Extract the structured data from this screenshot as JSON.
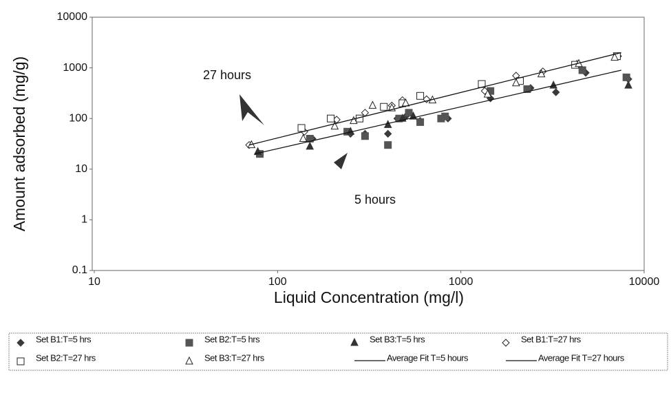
{
  "chart_data": {
    "type": "scatter",
    "x_label": "Liquid Concentration (mg/l)",
    "y_label": "Amount adsorbed (mg/g)",
    "annotations": [
      "27 hours",
      "5 hours"
    ],
    "x_log": true,
    "y_log": true,
    "xlim": [
      10,
      10000
    ],
    "xticks": [
      10,
      100,
      1000,
      10000
    ],
    "ylim": [
      0.1,
      10000
    ],
    "yticks": [
      0.1,
      1,
      10,
      100,
      1000,
      10000
    ],
    "series": [
      {
        "name": "Set B1:T=5 hrs",
        "marker": "diamond",
        "filled": true,
        "color": "#3a3a3a",
        "x": [
          80,
          155,
          250,
          300,
          400,
          450,
          500,
          600,
          850,
          1450,
          2400,
          3300,
          4800,
          8200
        ],
        "values": [
          20,
          40,
          50,
          50,
          50,
          100,
          110,
          90,
          100,
          250,
          400,
          330,
          800,
          600
        ]
      },
      {
        "name": "Set B2:T=5 hrs",
        "marker": "square",
        "filled": true,
        "color": "#555555",
        "x": [
          80,
          150,
          240,
          300,
          400,
          460,
          520,
          600,
          780,
          820,
          1450,
          2300,
          4600,
          8000
        ],
        "values": [
          20,
          40,
          55,
          45,
          30,
          100,
          130,
          85,
          100,
          110,
          350,
          380,
          900,
          650
        ]
      },
      {
        "name": "Set B3:T=5 hrs",
        "marker": "triangle",
        "filled": true,
        "color": "#333333",
        "x": [
          78,
          150,
          250,
          400,
          480,
          550,
          3200,
          8200
        ],
        "values": [
          22,
          28,
          55,
          75,
          100,
          110,
          450,
          450
        ]
      },
      {
        "name": "Set B1:T=27 hrs",
        "marker": "diamond",
        "filled": false,
        "color": "#222222",
        "x": [
          70,
          140,
          210,
          300,
          420,
          480,
          650,
          1350,
          2000,
          2800,
          4300,
          7200
        ],
        "values": [
          30,
          55,
          95,
          130,
          180,
          230,
          240,
          350,
          700,
          850,
          1200,
          1700
        ]
      },
      {
        "name": "Set B2:T=27 hrs",
        "marker": "square",
        "filled": false,
        "color": "#222222",
        "x": [
          135,
          195,
          280,
          380,
          480,
          600,
          1300,
          2100,
          4200,
          7100
        ],
        "values": [
          65,
          100,
          100,
          170,
          200,
          280,
          480,
          550,
          1150,
          1700
        ]
      },
      {
        "name": "Set B3:T=27 hrs",
        "marker": "triangle",
        "filled": false,
        "color": "#222222",
        "x": [
          72,
          138,
          205,
          260,
          330,
          420,
          500,
          700,
          1400,
          2000,
          2750,
          4400,
          6900
        ],
        "values": [
          30,
          40,
          70,
          90,
          180,
          160,
          200,
          230,
          300,
          500,
          750,
          1200,
          1600
        ]
      },
      {
        "name": "Average Fit T=5 hours",
        "marker": "line",
        "color": "#111111",
        "x": [
          75,
          7500
        ],
        "values": [
          20,
          900
        ]
      },
      {
        "name": "Average Fit T=27 hours",
        "marker": "line",
        "color": "#111111",
        "x": [
          70,
          7500
        ],
        "values": [
          30,
          2000
        ]
      }
    ]
  }
}
